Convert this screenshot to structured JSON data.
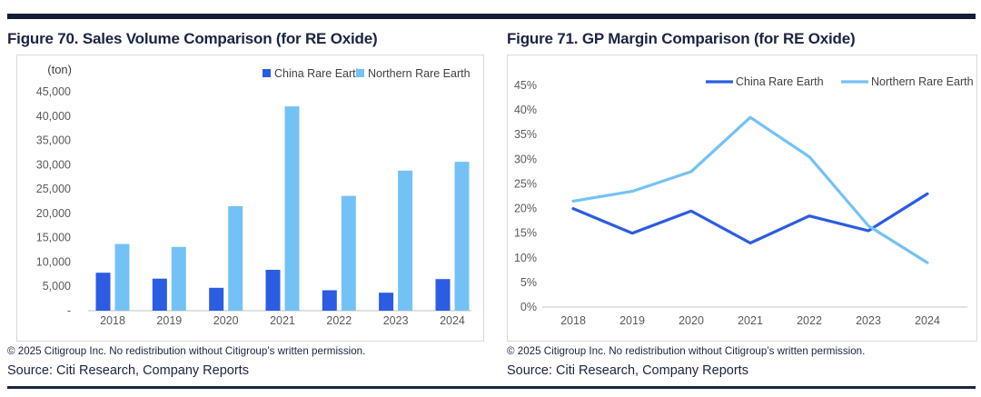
{
  "page": {
    "background": "#ffffff"
  },
  "colors": {
    "top_rule_navy": "#161e35",
    "bottom_rule_navy": "#1b2441",
    "title_navy": "#1b2441",
    "china_blue": "#2b5ce2",
    "northern_blue": "#74c2f5",
    "axis_text_gray": "#595959",
    "legend_text_gray": "#404040",
    "card_border": "#d9d9d9",
    "axis_line": "#cfcfcf"
  },
  "footer": {
    "copyright": "© 2025 Citigroup Inc. No redistribution without Citigroup’s written permission.",
    "source": "Source: Citi Research, Company Reports"
  },
  "chart_data": [
    {
      "type": "bar",
      "title": "Figure 70. Sales Volume Comparison (for RE Oxide)",
      "ylabel": "(ton)",
      "xlabel": "",
      "categories": [
        "2018",
        "2019",
        "2020",
        "2021",
        "2022",
        "2023",
        "2024"
      ],
      "series": [
        {
          "name": "China Rare Earth",
          "color": "#2b5ce2",
          "values": [
            7800,
            6600,
            4700,
            8400,
            4200,
            3700,
            6500
          ]
        },
        {
          "name": "Northern Rare Earth",
          "color": "#74c2f5",
          "values": [
            13700,
            13100,
            21500,
            42000,
            23600,
            28800,
            30600
          ]
        }
      ],
      "ylim": [
        0,
        45000
      ],
      "ytick_step": 5000,
      "zero_tick_label": "-",
      "grid": false,
      "legend_position": "top-right"
    },
    {
      "type": "line",
      "title": "Figure 71. GP Margin Comparison (for RE Oxide)",
      "ylabel": "",
      "xlabel": "",
      "categories": [
        "2018",
        "2019",
        "2020",
        "2021",
        "2022",
        "2023",
        "2024"
      ],
      "series": [
        {
          "name": "China Rare Earth",
          "color": "#2b5ce2",
          "values": [
            20,
            15,
            19.5,
            13,
            18.5,
            15.5,
            23
          ]
        },
        {
          "name": "Northern Rare Earth",
          "color": "#74c2f5",
          "values": [
            21.5,
            23.5,
            27.5,
            38.5,
            30.5,
            16.5,
            9
          ]
        }
      ],
      "ylim": [
        0,
        45
      ],
      "ytick_step": 5,
      "ytick_suffix": "%",
      "grid": false,
      "legend_position": "top-right"
    }
  ]
}
